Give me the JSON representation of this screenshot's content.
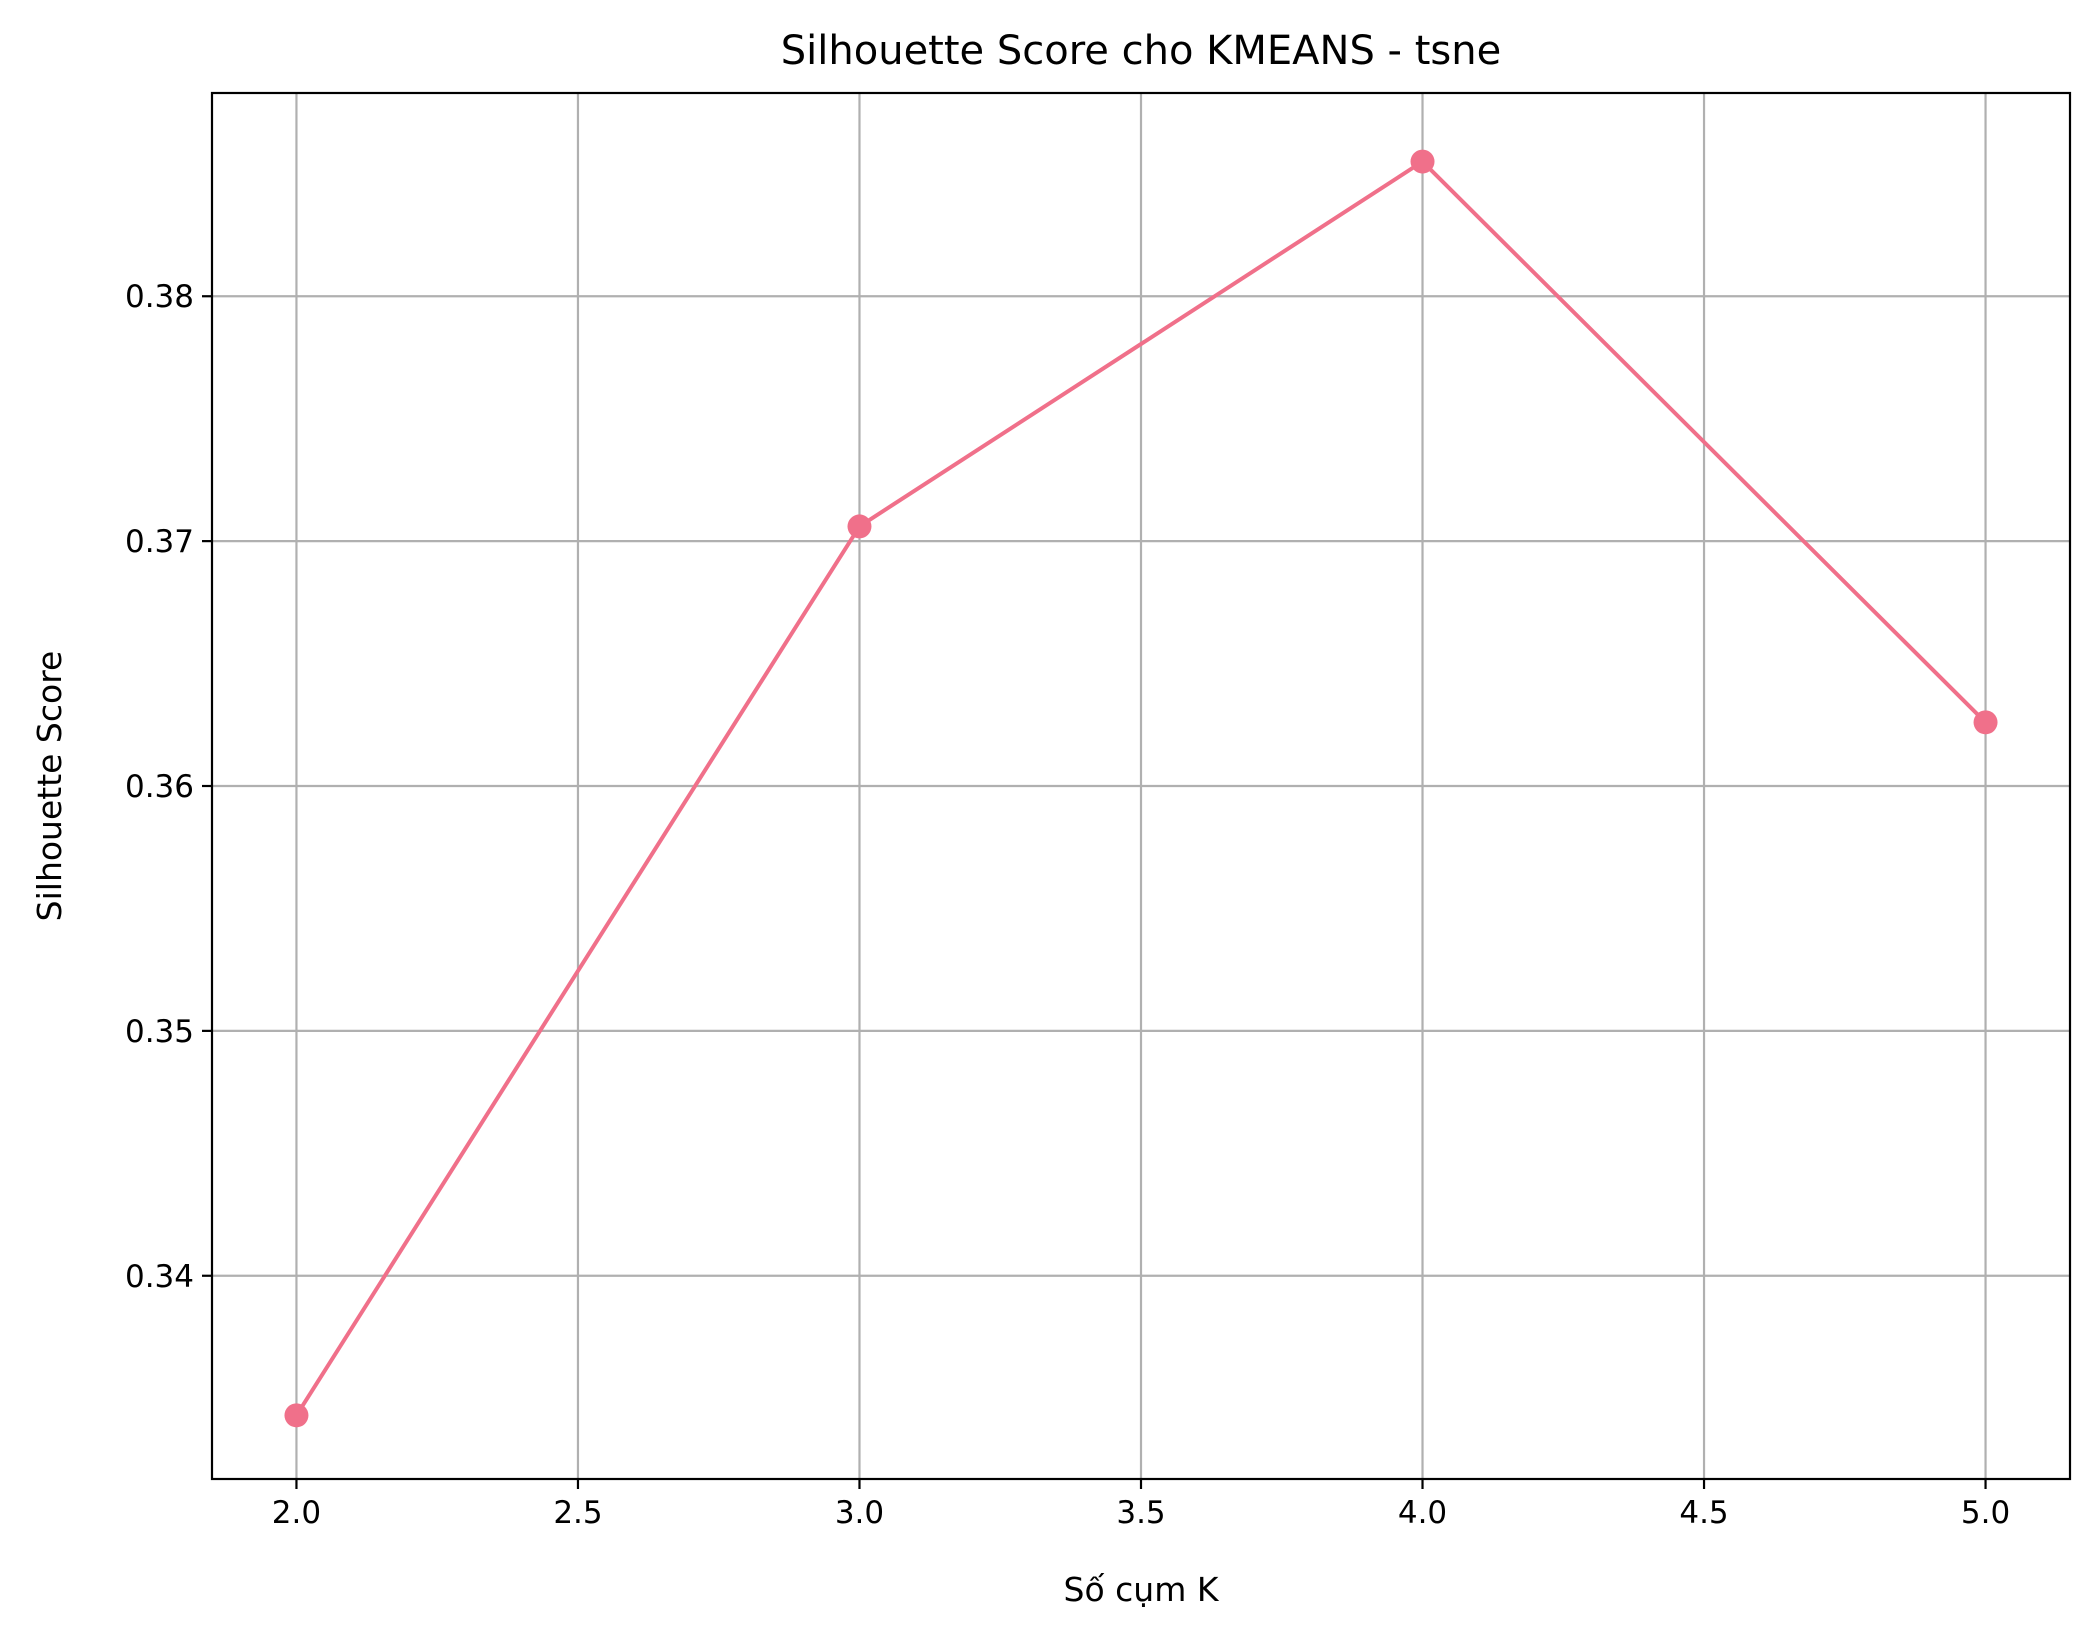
{
  "chart_data": {
    "type": "line",
    "title": "Silhouette Score cho KMEANS - tsne",
    "xlabel": "Số cụm K",
    "ylabel": "Silhouette Score",
    "x": [
      2,
      3,
      4,
      5
    ],
    "series": [
      {
        "values": [
          0.3343,
          0.3706,
          0.3855,
          0.3626
        ]
      }
    ],
    "xlim": [
      1.85,
      5.15
    ],
    "ylim": [
      0.3317,
      0.3883
    ],
    "xticks": [
      2.0,
      2.5,
      3.0,
      3.5,
      4.0,
      4.5,
      5.0
    ],
    "xtick_labels": [
      "2.0",
      "2.5",
      "3.0",
      "3.5",
      "4.0",
      "4.5",
      "5.0"
    ],
    "yticks": [
      0.34,
      0.35,
      0.36,
      0.37,
      0.38
    ],
    "ytick_labels": [
      "0.34",
      "0.35",
      "0.36",
      "0.37",
      "0.38"
    ],
    "grid": true,
    "marker": "circle",
    "line_color": "#f0708a"
  }
}
